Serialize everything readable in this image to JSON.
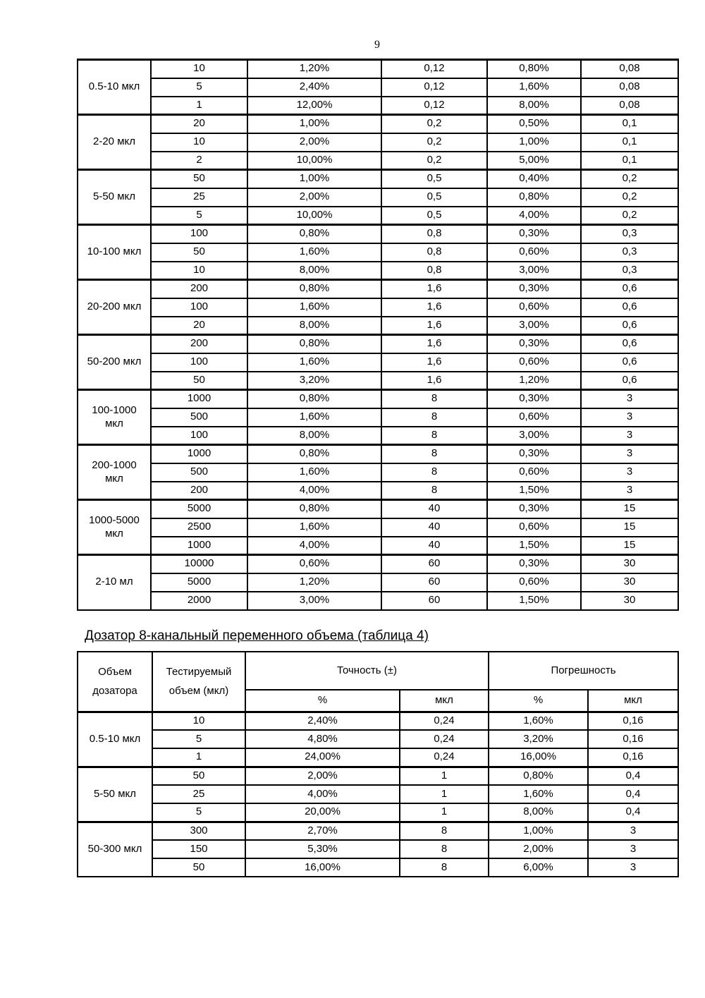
{
  "page": {
    "number": "9"
  },
  "table1": {
    "groups": [
      {
        "label": "0.5-10 мкл",
        "rows": [
          [
            "10",
            "1,20%",
            "0,12",
            "0,80%",
            "0,08"
          ],
          [
            "5",
            "2,40%",
            "0,12",
            "1,60%",
            "0,08"
          ],
          [
            "1",
            "12,00%",
            "0,12",
            "8,00%",
            "0,08"
          ]
        ]
      },
      {
        "label": "2-20 мкл",
        "rows": [
          [
            "20",
            "1,00%",
            "0,2",
            "0,50%",
            "0,1"
          ],
          [
            "10",
            "2,00%",
            "0,2",
            "1,00%",
            "0,1"
          ],
          [
            "2",
            "10,00%",
            "0,2",
            "5,00%",
            "0,1"
          ]
        ]
      },
      {
        "label": "5-50 мкл",
        "rows": [
          [
            "50",
            "1,00%",
            "0,5",
            "0,40%",
            "0,2"
          ],
          [
            "25",
            "2,00%",
            "0,5",
            "0,80%",
            "0,2"
          ],
          [
            "5",
            "10,00%",
            "0,5",
            "4,00%",
            "0,2"
          ]
        ]
      },
      {
        "label": "10-100 мкл",
        "rows": [
          [
            "100",
            "0,80%",
            "0,8",
            "0,30%",
            "0,3"
          ],
          [
            "50",
            "1,60%",
            "0,8",
            "0,60%",
            "0,3"
          ],
          [
            "10",
            "8,00%",
            "0,8",
            "3,00%",
            "0,3"
          ]
        ]
      },
      {
        "label": "20-200 мкл",
        "rows": [
          [
            "200",
            "0,80%",
            "1,6",
            "0,30%",
            "0,6"
          ],
          [
            "100",
            "1,60%",
            "1,6",
            "0,60%",
            "0,6"
          ],
          [
            "20",
            "8,00%",
            "1,6",
            "3,00%",
            "0,6"
          ]
        ]
      },
      {
        "label": "50-200 мкл",
        "rows": [
          [
            "200",
            "0,80%",
            "1,6",
            "0,30%",
            "0,6"
          ],
          [
            "100",
            "1,60%",
            "1,6",
            "0,60%",
            "0,6"
          ],
          [
            "50",
            "3,20%",
            "1,6",
            "1,20%",
            "0,6"
          ]
        ]
      },
      {
        "label": "100-1000 мкл",
        "rows": [
          [
            "1000",
            "0,80%",
            "8",
            "0,30%",
            "3"
          ],
          [
            "500",
            "1,60%",
            "8",
            "0,60%",
            "3"
          ],
          [
            "100",
            "8,00%",
            "8",
            "3,00%",
            "3"
          ]
        ]
      },
      {
        "label": "200-1000 мкл",
        "rows": [
          [
            "1000",
            "0,80%",
            "8",
            "0,30%",
            "3"
          ],
          [
            "500",
            "1,60%",
            "8",
            "0,60%",
            "3"
          ],
          [
            "200",
            "4,00%",
            "8",
            "1,50%",
            "3"
          ]
        ]
      },
      {
        "label": "1000-5000 мкл",
        "rows": [
          [
            "5000",
            "0,80%",
            "40",
            "0,30%",
            "15"
          ],
          [
            "2500",
            "1,60%",
            "40",
            "0,60%",
            "15"
          ],
          [
            "1000",
            "4,00%",
            "40",
            "1,50%",
            "15"
          ]
        ]
      },
      {
        "label": "2-10 мл",
        "rows": [
          [
            "10000",
            "0,60%",
            "60",
            "0,30%",
            "30"
          ],
          [
            "5000",
            "1,20%",
            "60",
            "0,60%",
            "30"
          ],
          [
            "2000",
            "3,00%",
            "60",
            "1,50%",
            "30"
          ]
        ]
      }
    ]
  },
  "section2": {
    "heading": "Дозатор 8-канальный переменного объема (таблица 4)",
    "table": {
      "header": {
        "col1": "Объем дозатора",
        "col2": "Тестируемый объем (мкл)",
        "accuracy": "Точность (±)",
        "error": "Погрешность",
        "sub": [
          "%",
          "мкл",
          "%",
          "мкл"
        ]
      },
      "groups": [
        {
          "label": "0.5-10 мкл",
          "rows": [
            [
              "10",
              "2,40%",
              "0,24",
              "1,60%",
              "0,16"
            ],
            [
              "5",
              "4,80%",
              "0,24",
              "3,20%",
              "0,16"
            ],
            [
              "1",
              "24,00%",
              "0,24",
              "16,00%",
              "0,16"
            ]
          ]
        },
        {
          "label": "5-50 мкл",
          "rows": [
            [
              "50",
              "2,00%",
              "1",
              "0,80%",
              "0,4"
            ],
            [
              "25",
              "4,00%",
              "1",
              "1,60%",
              "0,4"
            ],
            [
              "5",
              "20,00%",
              "1",
              "8,00%",
              "0,4"
            ]
          ]
        },
        {
          "label": "50-300 мкл",
          "rows": [
            [
              "300",
              "2,70%",
              "8",
              "1,00%",
              "3"
            ],
            [
              "150",
              "5,30%",
              "8",
              "2,00%",
              "3"
            ],
            [
              "50",
              "16,00%",
              "8",
              "6,00%",
              "3"
            ]
          ]
        }
      ]
    }
  }
}
